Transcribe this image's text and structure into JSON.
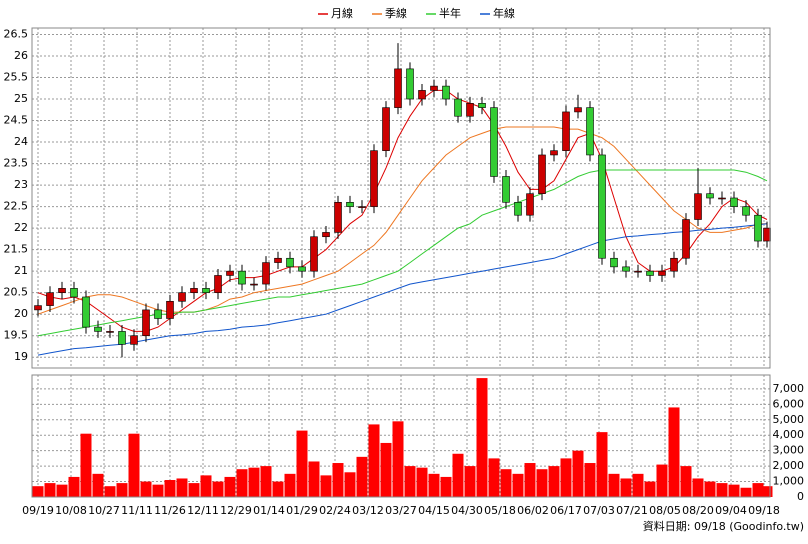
{
  "chart_data": [
    {
      "type": "candlestick",
      "x": [
        0,
        4,
        8,
        12,
        16,
        20,
        24,
        28,
        32,
        36,
        40,
        44,
        48,
        52,
        56,
        60,
        64,
        68,
        72,
        76,
        80,
        84,
        88,
        92,
        96,
        100,
        104,
        108,
        112,
        116,
        120,
        124,
        128,
        132,
        136,
        140,
        144,
        148,
        152,
        156,
        160,
        164,
        168,
        172,
        176,
        180,
        184,
        188,
        192,
        196,
        200,
        204,
        208,
        212,
        216,
        220,
        224,
        228,
        232,
        236,
        240,
        243
      ],
      "open": [
        20.1,
        20.2,
        20.5,
        20.6,
        20.4,
        19.7,
        19.6,
        19.6,
        19.3,
        19.5,
        20.1,
        19.9,
        20.3,
        20.5,
        20.6,
        20.5,
        20.9,
        21.0,
        20.7,
        20.7,
        21.2,
        21.3,
        21.1,
        21.0,
        21.8,
        21.9,
        22.6,
        22.5,
        22.5,
        23.8,
        24.8,
        25.7,
        25.0,
        25.2,
        25.3,
        25.0,
        24.6,
        24.9,
        24.8,
        23.2,
        22.6,
        22.3,
        22.8,
        23.7,
        23.8,
        24.7,
        24.8,
        23.7,
        21.3,
        21.1,
        21.0,
        21.0,
        20.9,
        21.0,
        21.3,
        22.2,
        22.8,
        22.7,
        22.7,
        22.5,
        22.3,
        21.7
      ],
      "high": [
        20.35,
        20.65,
        20.75,
        20.75,
        20.55,
        19.85,
        19.75,
        19.75,
        19.65,
        20.25,
        20.25,
        20.45,
        20.65,
        20.75,
        20.75,
        21.05,
        21.15,
        21.15,
        20.85,
        21.35,
        21.45,
        21.45,
        21.25,
        21.95,
        22.05,
        22.75,
        22.75,
        22.65,
        23.95,
        24.95,
        26.3,
        25.85,
        25.35,
        25.45,
        25.45,
        25.15,
        25.05,
        25.05,
        24.95,
        23.35,
        22.75,
        22.95,
        23.85,
        23.95,
        24.85,
        25.1,
        24.95,
        23.85,
        21.45,
        21.25,
        21.15,
        21.15,
        21.15,
        21.45,
        22.35,
        23.4,
        22.95,
        22.85,
        22.85,
        22.65,
        22.45,
        22.15
      ],
      "low": [
        19.95,
        20.05,
        20.35,
        20.25,
        19.55,
        19.45,
        19.45,
        19.0,
        19.15,
        19.35,
        19.75,
        19.75,
        20.15,
        20.35,
        20.35,
        20.35,
        20.75,
        20.55,
        20.55,
        20.55,
        21.05,
        20.95,
        20.85,
        20.85,
        21.65,
        21.75,
        22.35,
        22.35,
        22.35,
        23.65,
        24.65,
        24.85,
        24.85,
        25.05,
        24.85,
        24.45,
        24.45,
        24.65,
        23.05,
        22.45,
        22.15,
        22.15,
        22.65,
        23.55,
        23.65,
        24.55,
        23.55,
        21.15,
        20.95,
        20.85,
        20.85,
        20.75,
        20.75,
        20.85,
        21.15,
        22.05,
        22.55,
        22.55,
        22.35,
        22.15,
        21.55,
        21.55
      ],
      "close": [
        20.2,
        20.5,
        20.6,
        20.4,
        19.7,
        19.6,
        19.6,
        19.3,
        19.5,
        20.1,
        19.9,
        20.3,
        20.5,
        20.6,
        20.5,
        20.9,
        21.0,
        20.7,
        20.7,
        21.2,
        21.3,
        21.1,
        21.0,
        21.8,
        21.9,
        22.6,
        22.5,
        22.5,
        23.8,
        24.8,
        25.7,
        25.0,
        25.2,
        25.3,
        25.0,
        24.6,
        24.9,
        24.8,
        23.2,
        22.6,
        22.3,
        22.8,
        23.7,
        23.8,
        24.7,
        24.8,
        23.7,
        21.3,
        21.1,
        21.0,
        21.0,
        20.9,
        21.0,
        21.3,
        22.2,
        22.8,
        22.7,
        22.7,
        22.5,
        22.3,
        21.7,
        22.0
      ],
      "up_color": "#cc0000",
      "down_color": "#33cc33",
      "series": [
        {
          "name": "月線",
          "color": "#dd0000",
          "values": [
            20.5,
            20.4,
            20.35,
            20.4,
            20.3,
            20.1,
            19.9,
            19.7,
            19.6,
            19.6,
            19.7,
            19.9,
            20.1,
            20.3,
            20.5,
            20.6,
            20.8,
            20.85,
            20.85,
            20.9,
            21.0,
            21.1,
            21.1,
            21.3,
            21.5,
            21.8,
            22.1,
            22.3,
            22.8,
            23.4,
            24.1,
            24.6,
            25.0,
            25.2,
            25.2,
            25.0,
            24.9,
            24.8,
            24.4,
            23.9,
            23.3,
            22.9,
            22.9,
            23.1,
            23.6,
            24.1,
            24.2,
            23.6,
            22.7,
            21.8,
            21.2,
            21.0,
            21.0,
            21.1,
            21.4,
            21.8,
            22.1,
            22.5,
            22.7,
            22.6,
            22.3,
            22.2
          ]
        },
        {
          "name": "季線",
          "color": "#ee7722",
          "values": [
            20.0,
            20.1,
            20.2,
            20.3,
            20.4,
            20.45,
            20.45,
            20.4,
            20.3,
            20.2,
            20.1,
            20.05,
            20.05,
            20.05,
            20.1,
            20.2,
            20.35,
            20.4,
            20.5,
            20.55,
            20.6,
            20.65,
            20.7,
            20.8,
            20.9,
            21.0,
            21.2,
            21.4,
            21.6,
            21.9,
            22.3,
            22.7,
            23.1,
            23.4,
            23.7,
            23.9,
            24.1,
            24.2,
            24.3,
            24.35,
            24.35,
            24.35,
            24.35,
            24.35,
            24.3,
            24.3,
            24.2,
            24.1,
            23.9,
            23.6,
            23.3,
            23.0,
            22.7,
            22.4,
            22.2,
            22.0,
            21.9,
            21.9,
            21.95,
            22.0,
            22.1,
            22.1
          ]
        },
        {
          "name": "半年",
          "color": "#33cc33",
          "values": [
            19.5,
            19.55,
            19.6,
            19.65,
            19.7,
            19.75,
            19.8,
            19.85,
            19.9,
            19.95,
            20.0,
            20.0,
            20.05,
            20.05,
            20.1,
            20.15,
            20.2,
            20.25,
            20.3,
            20.35,
            20.4,
            20.4,
            20.45,
            20.5,
            20.55,
            20.6,
            20.65,
            20.7,
            20.8,
            20.9,
            21.0,
            21.2,
            21.4,
            21.6,
            21.8,
            22.0,
            22.1,
            22.3,
            22.4,
            22.5,
            22.6,
            22.7,
            22.8,
            22.9,
            23.05,
            23.2,
            23.3,
            23.35,
            23.35,
            23.35,
            23.35,
            23.35,
            23.35,
            23.35,
            23.35,
            23.35,
            23.35,
            23.35,
            23.35,
            23.3,
            23.2,
            23.1
          ]
        },
        {
          "name": "年線",
          "color": "#1155cc",
          "values": [
            19.05,
            19.1,
            19.15,
            19.2,
            19.22,
            19.25,
            19.28,
            19.3,
            19.35,
            19.4,
            19.45,
            19.5,
            19.52,
            19.55,
            19.6,
            19.62,
            19.65,
            19.7,
            19.72,
            19.75,
            19.8,
            19.85,
            19.9,
            19.95,
            20.0,
            20.1,
            20.2,
            20.3,
            20.4,
            20.5,
            20.6,
            20.7,
            20.75,
            20.8,
            20.85,
            20.9,
            20.95,
            21.0,
            21.05,
            21.1,
            21.15,
            21.2,
            21.25,
            21.3,
            21.4,
            21.5,
            21.6,
            21.7,
            21.75,
            21.8,
            21.82,
            21.85,
            21.87,
            21.9,
            21.92,
            21.95,
            21.97,
            22.0,
            22.02,
            22.05,
            22.08,
            22.1
          ]
        }
      ],
      "xlim": [
        -2,
        244
      ],
      "xticks": [
        {
          "value": 0,
          "label": "09/19"
        },
        {
          "value": 11,
          "label": "10/08"
        },
        {
          "value": 22,
          "label": "10/27"
        },
        {
          "value": 33,
          "label": "11/11"
        },
        {
          "value": 44,
          "label": "11/26"
        },
        {
          "value": 55,
          "label": "12/11"
        },
        {
          "value": 66,
          "label": "12/29"
        },
        {
          "value": 77,
          "label": "01/14"
        },
        {
          "value": 88,
          "label": "01/29"
        },
        {
          "value": 99,
          "label": "02/24"
        },
        {
          "value": 110,
          "label": "03/12"
        },
        {
          "value": 121,
          "label": "03/27"
        },
        {
          "value": 132,
          "label": "04/15"
        },
        {
          "value": 143,
          "label": "04/30"
        },
        {
          "value": 154,
          "label": "05/18"
        },
        {
          "value": 165,
          "label": "06/02"
        },
        {
          "value": 176,
          "label": "06/17"
        },
        {
          "value": 187,
          "label": "07/03"
        },
        {
          "value": 198,
          "label": "07/21"
        },
        {
          "value": 209,
          "label": "08/05"
        },
        {
          "value": 220,
          "label": "08/20"
        },
        {
          "value": 231,
          "label": "09/04"
        },
        {
          "value": 242,
          "label": "09/18"
        }
      ],
      "ylim": [
        18.75,
        26.65
      ],
      "yticks": [
        19,
        19.5,
        20,
        20.5,
        21,
        21.5,
        22,
        22.5,
        23,
        23.5,
        24,
        24.5,
        25,
        25.5,
        26,
        26.5
      ],
      "grid": true
    },
    {
      "type": "bar",
      "x": [
        0,
        4,
        8,
        12,
        16,
        20,
        24,
        28,
        32,
        36,
        40,
        44,
        48,
        52,
        56,
        60,
        64,
        68,
        72,
        76,
        80,
        84,
        88,
        92,
        96,
        100,
        104,
        108,
        112,
        116,
        120,
        124,
        128,
        132,
        136,
        140,
        144,
        148,
        152,
        156,
        160,
        164,
        168,
        172,
        176,
        180,
        184,
        188,
        192,
        196,
        200,
        204,
        208,
        212,
        216,
        220,
        224,
        228,
        232,
        236,
        240,
        243
      ],
      "values": [
        700,
        900,
        800,
        1300,
        4100,
        1500,
        700,
        900,
        4100,
        1000,
        800,
        1100,
        1200,
        900,
        1400,
        1000,
        1300,
        1800,
        1900,
        2000,
        1000,
        1500,
        4300,
        2300,
        1400,
        2200,
        1600,
        2600,
        4700,
        3500,
        4900,
        2000,
        1900,
        1500,
        1300,
        2800,
        2000,
        7700,
        2500,
        1800,
        1500,
        2200,
        1800,
        2000,
        2500,
        3000,
        2200,
        4200,
        1500,
        1200,
        1500,
        1000,
        2100,
        5800,
        2000,
        1200,
        1000,
        900,
        800,
        600,
        900,
        700
      ],
      "color": "#ff0000",
      "xlim": [
        -2,
        244
      ],
      "ylim": [
        0,
        7900
      ],
      "yticks": [
        0,
        {
          "value": 1000,
          "label": "1,000"
        },
        {
          "value": 2000,
          "label": "2,000"
        },
        {
          "value": 3000,
          "label": "3,000"
        },
        {
          "value": 4000,
          "label": "4,000"
        },
        {
          "value": 5000,
          "label": "5,000"
        },
        {
          "value": 6000,
          "label": "6,000"
        },
        {
          "value": 7000,
          "label": "7,000"
        }
      ],
      "grid": true
    }
  ],
  "footer": "資料日期: 09/18 (Goodinfo.tw)"
}
